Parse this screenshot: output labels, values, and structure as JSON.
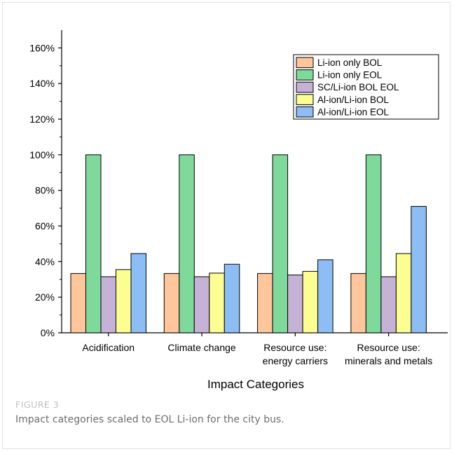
{
  "figure": {
    "label": "FIGURE 3",
    "caption": "Impact categories scaled to EOL Li-ion for the city bus."
  },
  "chart_data": {
    "type": "bar",
    "xlabel": "Impact Categories",
    "ylabel": "",
    "ylim": [
      0,
      170
    ],
    "y_ticks": [
      "0%",
      "20%",
      "40%",
      "60%",
      "80%",
      "100%",
      "120%",
      "140%",
      "160%"
    ],
    "y_tick_values": [
      0,
      20,
      40,
      60,
      80,
      100,
      120,
      140,
      160
    ],
    "categories": [
      [
        "Acidification"
      ],
      [
        "Climate change"
      ],
      [
        "Resource use:",
        "energy carriers"
      ],
      [
        "Resource use:",
        "minerals and metals"
      ]
    ],
    "legend_position": "top-right",
    "series": [
      {
        "name": "Li-ion only BOL",
        "color": "#ffc69c",
        "values": [
          33.3,
          33.3,
          33.3,
          33.3
        ]
      },
      {
        "name": "Li-ion only EOL",
        "color": "#7fd99b",
        "values": [
          100,
          100,
          100,
          100
        ]
      },
      {
        "name": "SC/Li-ion BOL EOL",
        "color": "#c6b2d6",
        "values": [
          31.5,
          31.5,
          32.5,
          31.5
        ]
      },
      {
        "name": "Al-ion/Li-ion BOL",
        "color": "#fdfe91",
        "values": [
          35.5,
          33.5,
          34.5,
          44.5
        ]
      },
      {
        "name": "Al-ion/Li-ion EOL",
        "color": "#8dbdf5",
        "values": [
          44.5,
          38.5,
          41,
          71
        ]
      }
    ]
  }
}
